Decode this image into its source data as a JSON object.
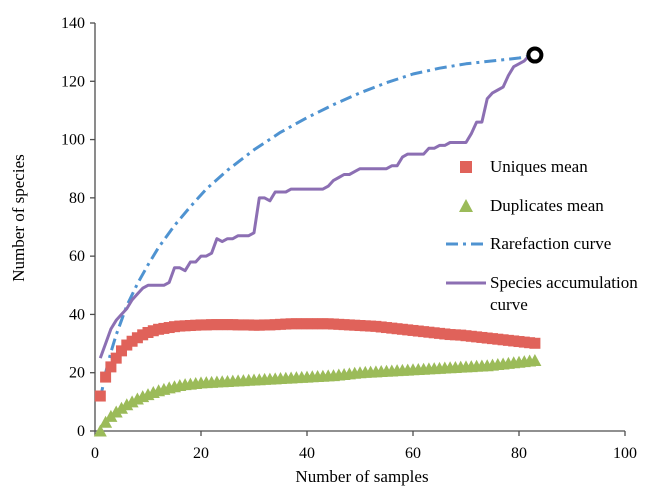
{
  "chart_data": {
    "type": "scatter",
    "title": "",
    "xlabel": "Number of samples",
    "ylabel": "Number of species",
    "xlim": [
      0,
      100
    ],
    "ylim": [
      0,
      140
    ],
    "xticks": [
      0,
      20,
      40,
      60,
      80,
      100
    ],
    "yticks": [
      0,
      20,
      40,
      60,
      80,
      100,
      120,
      140
    ],
    "grid": false,
    "legend_position": "right",
    "series": [
      {
        "name": "Uniques mean",
        "type": "marker-square",
        "color": "#e0625a",
        "x": [
          1,
          2,
          3,
          4,
          5,
          6,
          7,
          8,
          9,
          10,
          11,
          12,
          13,
          14,
          15,
          16,
          17,
          18,
          19,
          20,
          21,
          22,
          23,
          24,
          25,
          26,
          27,
          28,
          29,
          30,
          31,
          32,
          33,
          34,
          35,
          36,
          37,
          38,
          39,
          40,
          41,
          42,
          43,
          44,
          45,
          46,
          47,
          48,
          49,
          50,
          51,
          52,
          53,
          54,
          55,
          56,
          57,
          58,
          59,
          60,
          61,
          62,
          63,
          64,
          65,
          66,
          67,
          68,
          69,
          70,
          71,
          72,
          73,
          74,
          75,
          76,
          77,
          78,
          79,
          80,
          81,
          82,
          83
        ],
        "y": [
          12,
          18.5,
          22,
          25,
          27.5,
          29.5,
          30.8,
          32,
          33,
          33.8,
          34.4,
          34.9,
          35.2,
          35.5,
          35.8,
          36,
          36.1,
          36.2,
          36.3,
          36.4,
          36.4,
          36.5,
          36.5,
          36.5,
          36.5,
          36.5,
          36.4,
          36.4,
          36.4,
          36.3,
          36.3,
          36.4,
          36.4,
          36.5,
          36.6,
          36.7,
          36.8,
          36.8,
          36.8,
          36.8,
          36.8,
          36.8,
          36.8,
          36.8,
          36.7,
          36.6,
          36.5,
          36.4,
          36.3,
          36.2,
          36.1,
          36,
          35.9,
          35.7,
          35.5,
          35.3,
          35.1,
          34.9,
          34.7,
          34.5,
          34.3,
          34.1,
          33.9,
          33.7,
          33.5,
          33.3,
          33.1,
          33,
          32.9,
          32.7,
          32.5,
          32.3,
          32.1,
          31.9,
          31.7,
          31.5,
          31.3,
          31.1,
          30.9,
          30.7,
          30.5,
          30.3,
          30.1
        ]
      },
      {
        "name": "Duplicates mean",
        "type": "marker-triangle",
        "color": "#9bbb59",
        "x": [
          1,
          2,
          3,
          4,
          5,
          6,
          7,
          8,
          9,
          10,
          11,
          12,
          13,
          14,
          15,
          16,
          17,
          18,
          19,
          20,
          21,
          22,
          23,
          24,
          25,
          26,
          27,
          28,
          29,
          30,
          31,
          32,
          33,
          34,
          35,
          36,
          37,
          38,
          39,
          40,
          41,
          42,
          43,
          44,
          45,
          46,
          47,
          48,
          49,
          50,
          51,
          52,
          53,
          54,
          55,
          56,
          57,
          58,
          59,
          60,
          61,
          62,
          63,
          64,
          65,
          66,
          67,
          68,
          69,
          70,
          71,
          72,
          73,
          74,
          75,
          76,
          77,
          78,
          79,
          80,
          81,
          82,
          83
        ],
        "y": [
          0,
          3,
          5,
          6.5,
          7.8,
          9,
          10,
          11,
          11.8,
          12.5,
          13.2,
          13.8,
          14.3,
          14.8,
          15.2,
          15.6,
          15.9,
          16.1,
          16.3,
          16.5,
          16.6,
          16.7,
          16.8,
          16.9,
          17,
          17.1,
          17.2,
          17.3,
          17.4,
          17.5,
          17.6,
          17.7,
          17.8,
          17.9,
          18,
          18.1,
          18.2,
          18.3,
          18.4,
          18.5,
          18.6,
          18.7,
          18.8,
          18.9,
          19,
          19.2,
          19.4,
          19.6,
          19.8,
          20,
          20.1,
          20.2,
          20.3,
          20.4,
          20.5,
          20.6,
          20.7,
          20.8,
          20.9,
          21,
          21.1,
          21.2,
          21.3,
          21.4,
          21.5,
          21.6,
          21.7,
          21.8,
          21.9,
          22,
          22.1,
          22.2,
          22.3,
          22.4,
          22.6,
          22.8,
          23,
          23.2,
          23.4,
          23.6,
          23.8,
          24,
          24.2
        ]
      },
      {
        "name": "Rarefaction curve",
        "type": "line-dashdot",
        "color": "#4f93d1",
        "x": [
          1,
          2,
          3,
          4,
          5,
          6,
          8,
          10,
          12,
          15,
          18,
          21,
          25,
          30,
          35,
          40,
          45,
          50,
          55,
          60,
          65,
          70,
          75,
          80,
          83
        ],
        "y": [
          11,
          20,
          27,
          33,
          38,
          43,
          50.5,
          57,
          63,
          70.5,
          77,
          83,
          89.5,
          96.5,
          102.5,
          107.5,
          112,
          116,
          119.5,
          122.5,
          124.5,
          126,
          127,
          128,
          129
        ]
      },
      {
        "name": "Species accumulation curve",
        "type": "line",
        "color": "#8c6fb3",
        "x": [
          1,
          2,
          3,
          4,
          5,
          6,
          7,
          8,
          9,
          10,
          11,
          12,
          13,
          14,
          15,
          16,
          17,
          18,
          19,
          20,
          21,
          22,
          23,
          24,
          25,
          26,
          27,
          28,
          29,
          30,
          31,
          32,
          33,
          34,
          35,
          36,
          37,
          38,
          39,
          40,
          41,
          42,
          43,
          44,
          45,
          46,
          47,
          48,
          49,
          50,
          51,
          52,
          53,
          54,
          55,
          56,
          57,
          58,
          59,
          60,
          61,
          62,
          63,
          64,
          65,
          66,
          67,
          68,
          69,
          70,
          71,
          72,
          73,
          74,
          75,
          76,
          77,
          78,
          79,
          80,
          81,
          82,
          83
        ],
        "y": [
          25,
          30,
          35,
          38,
          40,
          42,
          45,
          47,
          49,
          50,
          50,
          50,
          50,
          51,
          56,
          56,
          55,
          58,
          58,
          60,
          60,
          61,
          66,
          65,
          66,
          66,
          67,
          67,
          67,
          68,
          80,
          80,
          79,
          82,
          82,
          82,
          83,
          83,
          83,
          83,
          83,
          83,
          83,
          84,
          86,
          87,
          88,
          88,
          89,
          90,
          90,
          90,
          90,
          90,
          90,
          91,
          91,
          94,
          95,
          95,
          95,
          95,
          97,
          97,
          98,
          98,
          99,
          99,
          99,
          99,
          102,
          106,
          106,
          114,
          116,
          117,
          118,
          122,
          125,
          126,
          127,
          129,
          129
        ]
      }
    ],
    "endpoint_marker": {
      "x": 83,
      "y": 129
    }
  }
}
